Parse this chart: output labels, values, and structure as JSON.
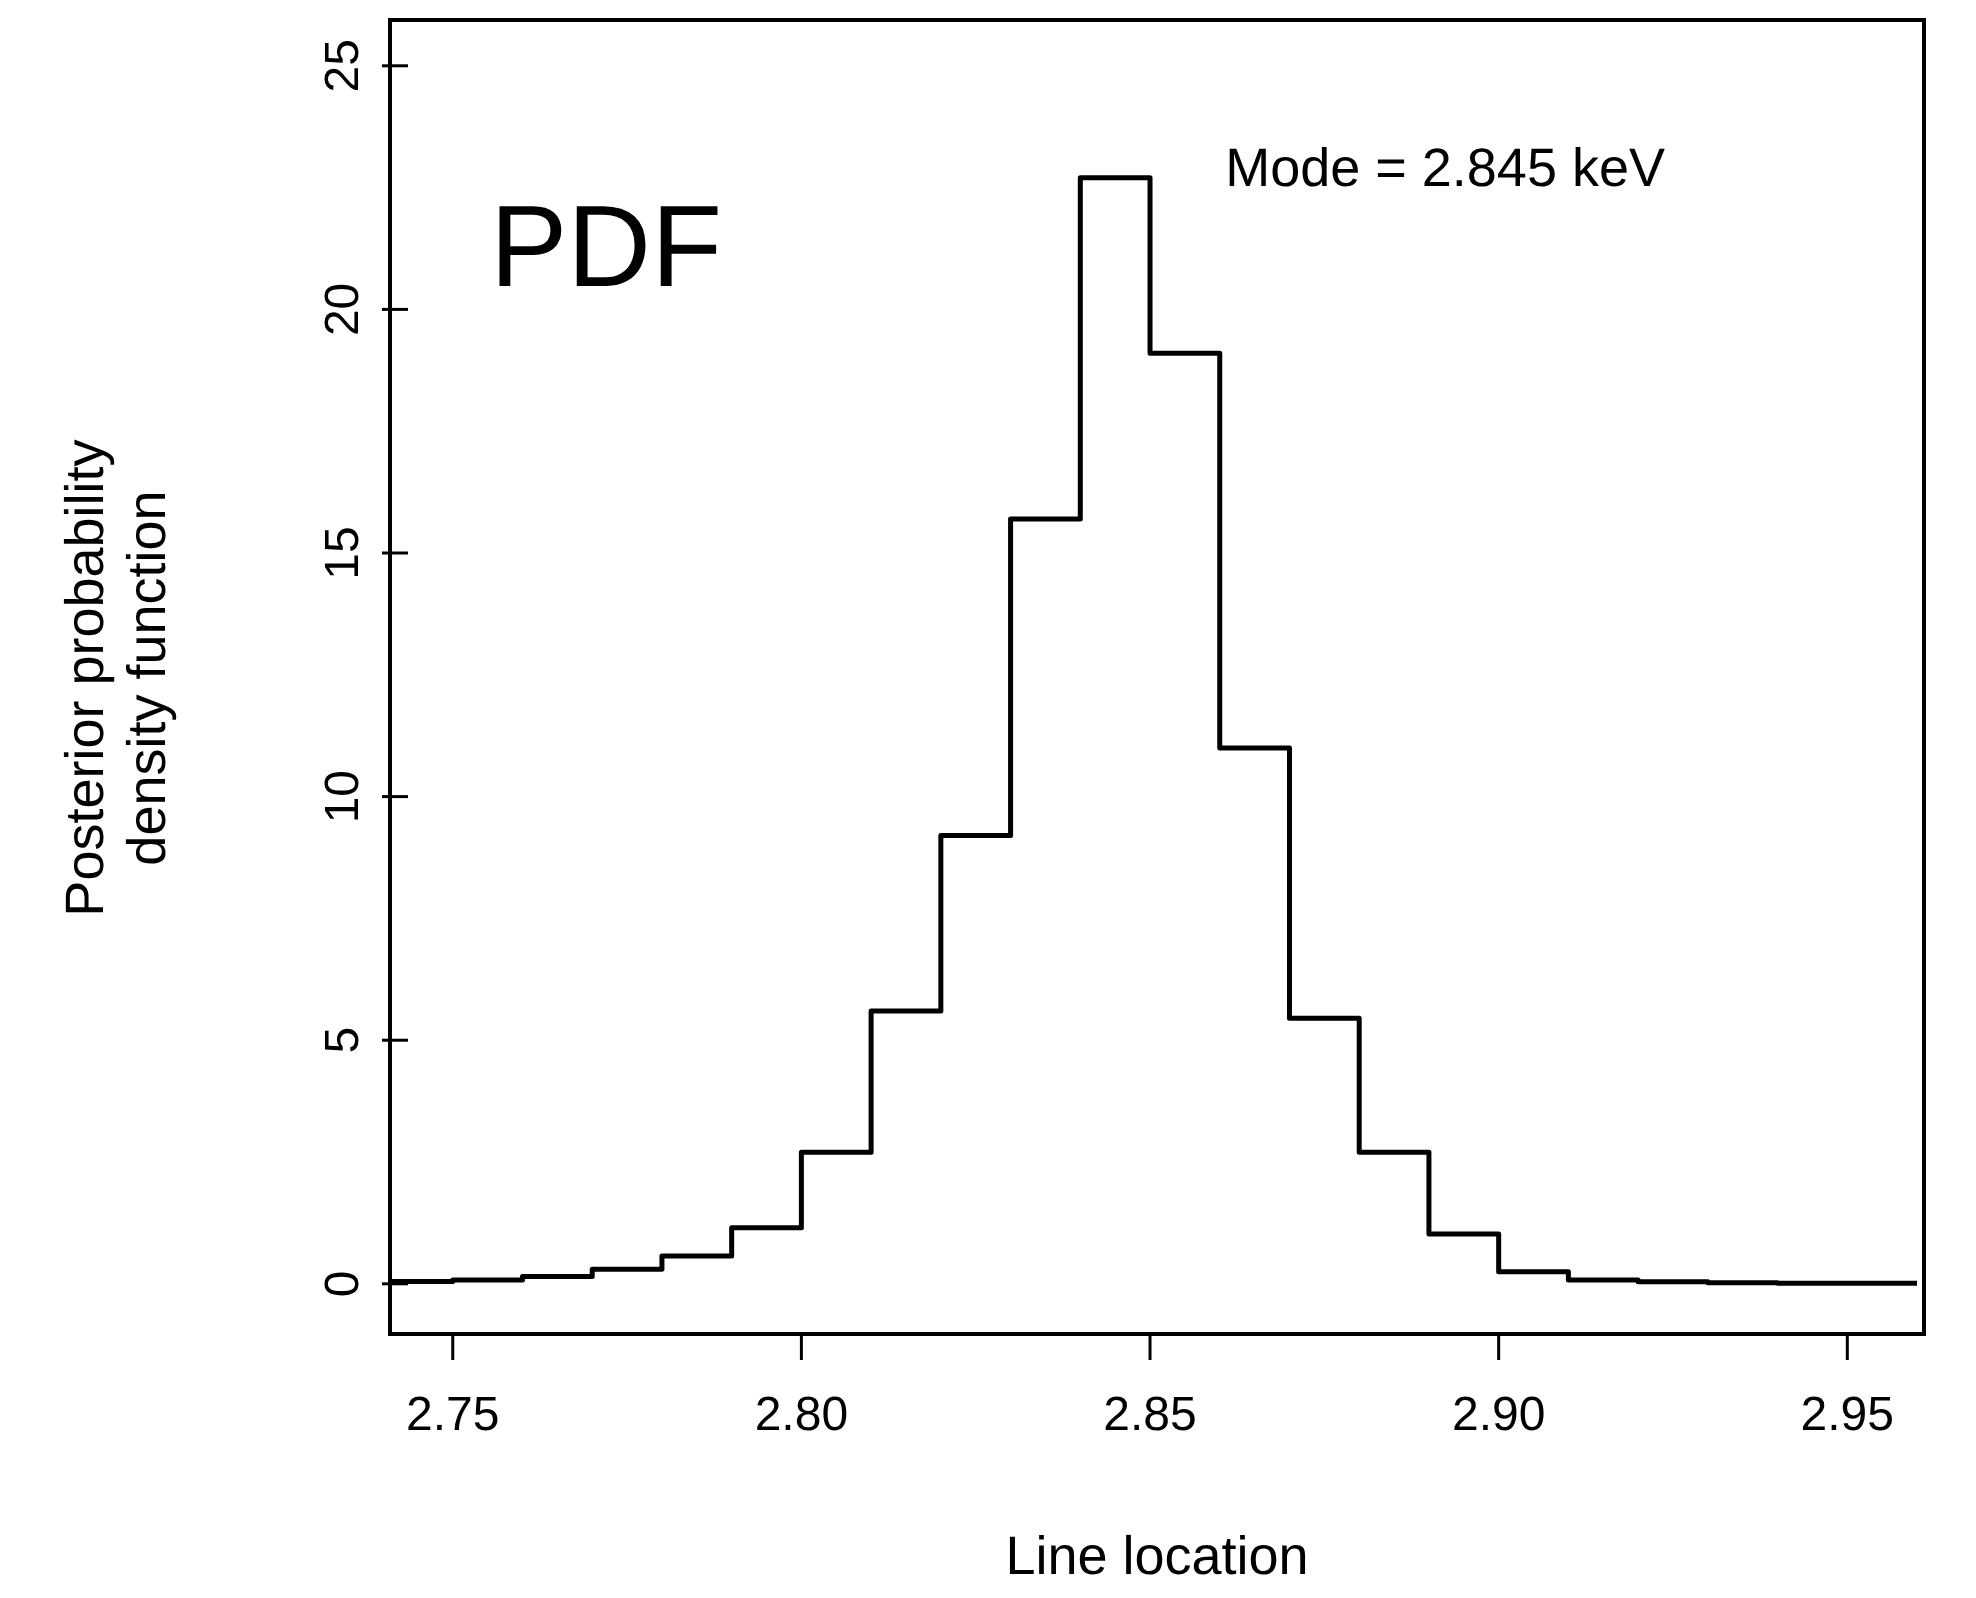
{
  "chart_data": {
    "type": "histogram",
    "xlabel": "Line location",
    "ylabel": "Posterior probability\ndensity function",
    "bins": [
      2.74,
      2.75,
      2.76,
      2.77,
      2.78,
      2.79,
      2.8,
      2.81,
      2.82,
      2.83,
      2.84,
      2.85,
      2.86,
      2.87,
      2.88,
      2.89,
      2.9,
      2.91,
      2.92,
      2.93,
      2.94,
      2.95,
      2.96
    ],
    "values": [
      0.05,
      0.08,
      0.15,
      0.3,
      0.57,
      1.15,
      2.7,
      5.6,
      9.2,
      15.7,
      22.7,
      19.1,
      11.0,
      5.45,
      2.7,
      1.02,
      0.25,
      0.08,
      0.04,
      0.02,
      0.01,
      0.01
    ],
    "color": "#000000",
    "xlim": [
      2.741,
      2.961
    ],
    "ylim": [
      -1.03,
      25.94
    ],
    "xticks": [
      {
        "value": 2.75,
        "label": "2.75"
      },
      {
        "value": 2.8,
        "label": "2.80"
      },
      {
        "value": 2.85,
        "label": "2.85"
      },
      {
        "value": 2.9,
        "label": "2.90"
      },
      {
        "value": 2.95,
        "label": "2.95"
      }
    ],
    "yticks": [
      0,
      5,
      10,
      15,
      20,
      25
    ],
    "grid": false,
    "legend": false,
    "annotations": [
      "PDF",
      {
        "text": "Mode = 2.845 keV",
        "x": 2.845,
        "y": 22.7
      }
    ]
  }
}
